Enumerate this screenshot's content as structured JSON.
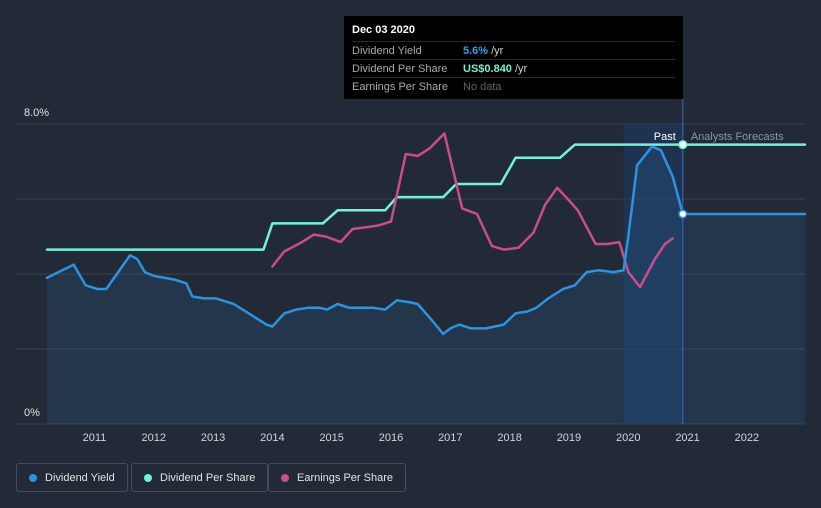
{
  "tooltip": {
    "date": "Dec 03 2020",
    "rows": [
      {
        "label": "Dividend Yield",
        "value": "5.6%",
        "unit": "/yr"
      },
      {
        "label": "Dividend Per Share",
        "value": "US$0.840",
        "unit": "/yr"
      },
      {
        "label": "Earnings Per Share",
        "value": "No data",
        "unit": ""
      }
    ]
  },
  "legend": [
    {
      "label": "Dividend Yield",
      "color": "#2b93e0"
    },
    {
      "label": "Dividend Per Share",
      "color": "#74f2d6"
    },
    {
      "label": "Earnings Per Share",
      "color": "#c94c8e"
    }
  ],
  "chart_data": {
    "type": "line",
    "y_axis_labels": [
      "8.0%",
      "0%"
    ],
    "ylim": [
      0,
      8.0
    ],
    "xlim": [
      2010.2,
      2022.98
    ],
    "x_ticks": [
      2011,
      2012,
      2013,
      2014,
      2015,
      2016,
      2017,
      2018,
      2019,
      2020,
      2021,
      2022
    ],
    "past_label": "Past",
    "forecast_label": "Analysts Forecasts",
    "divider_x": 2020.92,
    "highlight_range": [
      2019.92,
      2020.92
    ],
    "series": [
      {
        "name": "Dividend Yield",
        "color": "#2b93e0",
        "points": [
          [
            2010.2,
            3.9
          ],
          [
            2010.65,
            4.25
          ],
          [
            2010.85,
            3.7
          ],
          [
            2011.05,
            3.6
          ],
          [
            2011.2,
            3.6
          ],
          [
            2011.4,
            4.05
          ],
          [
            2011.6,
            4.5
          ],
          [
            2011.72,
            4.4
          ],
          [
            2011.85,
            4.05
          ],
          [
            2012.0,
            3.95
          ],
          [
            2012.35,
            3.85
          ],
          [
            2012.55,
            3.75
          ],
          [
            2012.65,
            3.4
          ],
          [
            2012.85,
            3.35
          ],
          [
            2013.05,
            3.35
          ],
          [
            2013.35,
            3.2
          ],
          [
            2013.7,
            2.85
          ],
          [
            2013.9,
            2.65
          ],
          [
            2014.0,
            2.6
          ],
          [
            2014.2,
            2.95
          ],
          [
            2014.4,
            3.05
          ],
          [
            2014.6,
            3.1
          ],
          [
            2014.8,
            3.1
          ],
          [
            2014.92,
            3.05
          ],
          [
            2015.1,
            3.2
          ],
          [
            2015.3,
            3.1
          ],
          [
            2015.5,
            3.1
          ],
          [
            2015.7,
            3.1
          ],
          [
            2015.9,
            3.05
          ],
          [
            2016.1,
            3.3
          ],
          [
            2016.3,
            3.25
          ],
          [
            2016.45,
            3.2
          ],
          [
            2016.7,
            2.75
          ],
          [
            2016.88,
            2.4
          ],
          [
            2017.0,
            2.55
          ],
          [
            2017.15,
            2.65
          ],
          [
            2017.35,
            2.55
          ],
          [
            2017.6,
            2.55
          ],
          [
            2017.9,
            2.65
          ],
          [
            2018.1,
            2.95
          ],
          [
            2018.3,
            3.0
          ],
          [
            2018.45,
            3.1
          ],
          [
            2018.65,
            3.35
          ],
          [
            2018.9,
            3.6
          ],
          [
            2019.1,
            3.7
          ],
          [
            2019.3,
            4.05
          ],
          [
            2019.5,
            4.1
          ],
          [
            2019.75,
            4.05
          ],
          [
            2019.92,
            4.1
          ],
          [
            2020.0,
            5.0
          ],
          [
            2020.15,
            6.9
          ],
          [
            2020.4,
            7.4
          ],
          [
            2020.55,
            7.3
          ],
          [
            2020.75,
            6.6
          ],
          [
            2020.92,
            5.6
          ],
          [
            2021.5,
            5.6
          ],
          [
            2022.98,
            5.6
          ]
        ]
      },
      {
        "name": "Dividend Per Share",
        "color": "#74f2d6",
        "points": [
          [
            2010.2,
            4.65
          ],
          [
            2013.85,
            4.65
          ],
          [
            2014.0,
            5.35
          ],
          [
            2014.85,
            5.35
          ],
          [
            2015.1,
            5.7
          ],
          [
            2015.9,
            5.7
          ],
          [
            2016.1,
            6.05
          ],
          [
            2016.88,
            6.05
          ],
          [
            2017.1,
            6.4
          ],
          [
            2017.85,
            6.4
          ],
          [
            2018.1,
            7.1
          ],
          [
            2018.85,
            7.1
          ],
          [
            2019.1,
            7.45
          ],
          [
            2022.98,
            7.45
          ]
        ]
      },
      {
        "name": "Earnings Per Share",
        "color": "#c94c8e",
        "points": [
          [
            2014.0,
            4.2
          ],
          [
            2014.2,
            4.6
          ],
          [
            2014.5,
            4.85
          ],
          [
            2014.7,
            5.05
          ],
          [
            2014.9,
            5.0
          ],
          [
            2015.15,
            4.85
          ],
          [
            2015.35,
            5.2
          ],
          [
            2015.6,
            5.25
          ],
          [
            2015.8,
            5.3
          ],
          [
            2016.0,
            5.4
          ],
          [
            2016.25,
            7.2
          ],
          [
            2016.45,
            7.15
          ],
          [
            2016.65,
            7.35
          ],
          [
            2016.9,
            7.75
          ],
          [
            2017.2,
            5.75
          ],
          [
            2017.45,
            5.6
          ],
          [
            2017.7,
            4.75
          ],
          [
            2017.9,
            4.65
          ],
          [
            2018.15,
            4.7
          ],
          [
            2018.4,
            5.1
          ],
          [
            2018.6,
            5.85
          ],
          [
            2018.8,
            6.3
          ],
          [
            2018.95,
            6.05
          ],
          [
            2019.15,
            5.7
          ],
          [
            2019.45,
            4.8
          ],
          [
            2019.65,
            4.8
          ],
          [
            2019.85,
            4.85
          ],
          [
            2020.0,
            4.05
          ],
          [
            2020.2,
            3.65
          ],
          [
            2020.45,
            4.4
          ],
          [
            2020.62,
            4.8
          ],
          [
            2020.75,
            4.95
          ]
        ]
      }
    ],
    "markers": [
      {
        "series": "Dividend Yield",
        "x": 2020.92,
        "y": 5.6
      },
      {
        "series": "Dividend Per Share",
        "x": 2020.92,
        "y": 7.45
      }
    ]
  }
}
